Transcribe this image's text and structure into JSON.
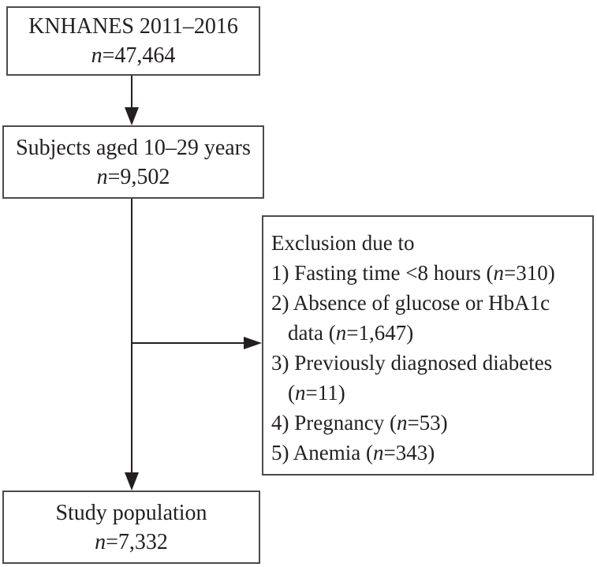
{
  "colors": {
    "background": "#ffffff",
    "box_border": "#4b4b4d",
    "text": "#231f20",
    "arrow": "#231f20"
  },
  "boxes": {
    "source": {
      "title": "KNHANES 2011–2016",
      "n_var": "n",
      "n_value": "=47,464"
    },
    "subjects": {
      "title": "Subjects aged 10–29 years",
      "n_var": "n",
      "n_value": "=9,502"
    },
    "study": {
      "title": "Study population",
      "n_var": "n",
      "n_value": "=7,332"
    }
  },
  "exclusion": {
    "header": "Exclusion due to",
    "items": [
      {
        "segments": [
          {
            "text": "1) Fasting time <8 hours (",
            "italic": false
          },
          {
            "text": "n",
            "italic": true
          },
          {
            "text": "=310)",
            "italic": false
          }
        ]
      },
      {
        "segments": [
          {
            "text": "2) Absence of glucose or HbA1c data (",
            "italic": false
          },
          {
            "text": "n",
            "italic": true
          },
          {
            "text": "=1,647)",
            "italic": false
          }
        ]
      },
      {
        "segments": [
          {
            "text": "3) Previously diagnosed diabetes (",
            "italic": false
          },
          {
            "text": "n",
            "italic": true
          },
          {
            "text": "=11)",
            "italic": false
          }
        ]
      },
      {
        "segments": [
          {
            "text": "4) Pregnancy (",
            "italic": false
          },
          {
            "text": "n",
            "italic": true
          },
          {
            "text": "=53)",
            "italic": false
          }
        ]
      },
      {
        "segments": [
          {
            "text": "5) Anemia (",
            "italic": false
          },
          {
            "text": "n",
            "italic": true
          },
          {
            "text": "=343)",
            "italic": false
          }
        ]
      }
    ]
  }
}
